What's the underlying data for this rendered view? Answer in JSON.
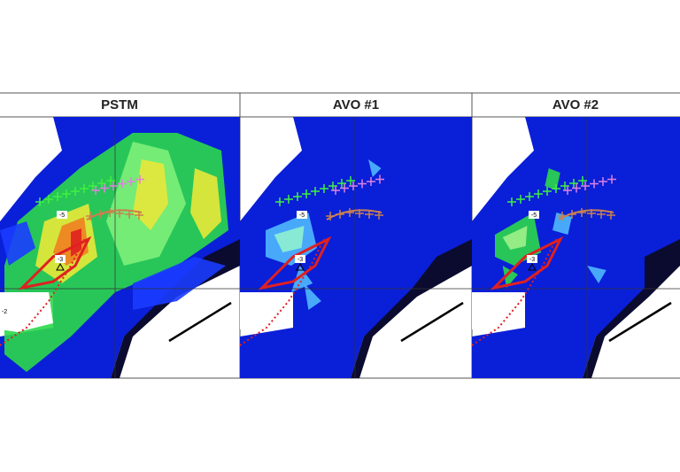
{
  "panels": [
    {
      "title": "PSTM",
      "labels": [
        "-5",
        "-3",
        "-2"
      ]
    },
    {
      "title": "AVO #1",
      "labels": [
        "-5",
        "-3"
      ]
    },
    {
      "title": "AVO #2",
      "labels": [
        "-5",
        "-3"
      ]
    }
  ]
}
